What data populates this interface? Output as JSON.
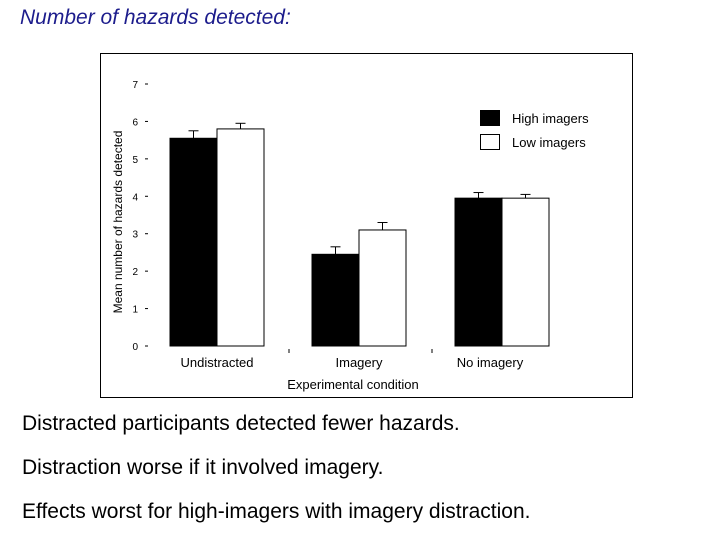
{
  "slide": {
    "title": "Number of hazards detected:",
    "bullets": [
      "Distracted participants detected fewer hazards.",
      "Distraction worse if it involved imagery.",
      "Effects worst for high-imagers with imagery distraction."
    ]
  },
  "chart_data": {
    "type": "bar",
    "categories": [
      "Undistracted",
      "Imagery",
      "No imagery"
    ],
    "series": [
      {
        "name": "High imagers",
        "values": [
          5.55,
          2.45,
          3.95
        ],
        "color": "#000000"
      },
      {
        "name": "Low imagers",
        "values": [
          5.8,
          3.1,
          3.95
        ],
        "color": "#ffffff"
      }
    ],
    "error_bars": [
      [
        0.2,
        0.2,
        0.15
      ],
      [
        0.15,
        0.2,
        0.1
      ]
    ],
    "xlabel": "Experimental condition",
    "ylabel": "Mean number of hazards detected",
    "ylim": [
      0,
      7
    ],
    "yticks": [
      "0",
      "1",
      "2",
      "3",
      "4",
      "5",
      "6",
      "7"
    ],
    "legend_position": "top-right",
    "grid": false
  }
}
